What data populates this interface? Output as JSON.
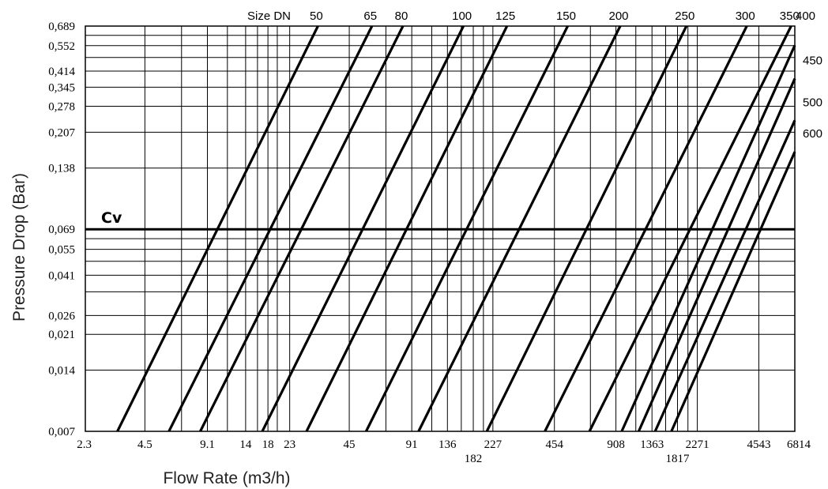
{
  "chart_data": {
    "type": "line",
    "title": "",
    "xlabel": "Flow Rate (m3/h)",
    "ylabel": "Pressure Drop (Bar)",
    "x_scale": "log",
    "y_scale": "log",
    "xlim": [
      2.3,
      6814
    ],
    "ylim": [
      0.007,
      0.689
    ],
    "grid": true,
    "x_ticks": [
      "2.3",
      "4.5",
      "9.1",
      "14",
      "18",
      "23",
      "45",
      "91",
      "136",
      "182",
      "227",
      "454",
      "908",
      "1363",
      "1817",
      "2271",
      "4543",
      "6814"
    ],
    "x_gridlines": [
      4.5,
      6.8,
      9.1,
      11.4,
      14,
      16,
      18,
      20,
      23,
      45,
      68,
      91,
      114,
      136,
      159,
      182,
      204,
      227,
      454,
      681,
      908,
      1136,
      1363,
      1590,
      1817,
      2044,
      2271,
      4543,
      6814
    ],
    "y_ticks": [
      "0,689",
      "0,552",
      "0,414",
      "0,345",
      "0,278",
      "0,207",
      "0,138",
      "0,069",
      "0,055",
      "0,041",
      "0,026",
      "0,021",
      "0,014",
      "0,007"
    ],
    "y_gridlines": [
      0.689,
      0.62,
      0.552,
      0.483,
      0.414,
      0.345,
      0.278,
      0.207,
      0.138,
      0.069,
      0.062,
      0.055,
      0.048,
      0.041,
      0.034,
      0.026,
      0.021,
      0.014,
      0.007
    ],
    "size_label": "Size DN",
    "cv_label": "Cv",
    "cv_pressure": 0.069,
    "series": [
      {
        "name": "50",
        "x": [
          3.3,
          31.6
        ],
        "y": [
          0.007,
          0.689
        ]
      },
      {
        "name": "65",
        "x": [
          5.9,
          58.1
        ],
        "y": [
          0.007,
          0.689
        ]
      },
      {
        "name": "80",
        "x": [
          8.4,
          82.4
        ],
        "y": [
          0.007,
          0.689
        ]
      },
      {
        "name": "100",
        "x": [
          16.9,
          163
        ],
        "y": [
          0.007,
          0.689
        ]
      },
      {
        "name": "125",
        "x": [
          27.8,
          266
        ],
        "y": [
          0.007,
          0.689
        ]
      },
      {
        "name": "150",
        "x": [
          54.4,
          527
        ],
        "y": [
          0.007,
          0.689
        ]
      },
      {
        "name": "200",
        "x": [
          98.3,
          953
        ],
        "y": [
          0.007,
          0.689
        ]
      },
      {
        "name": "250",
        "x": [
          212,
          2009
        ],
        "y": [
          0.007,
          0.689
        ]
      },
      {
        "name": "300",
        "x": [
          408,
          3967
        ],
        "y": [
          0.007,
          0.689
        ]
      },
      {
        "name": "350",
        "x": [
          674,
          6534
        ],
        "y": [
          0.007,
          0.689
        ]
      },
      {
        "name": "400",
        "x": [
          969,
          6814
        ],
        "y": [
          0.007,
          0.554
        ]
      },
      {
        "name": "450",
        "x": [
          1173,
          6814
        ],
        "y": [
          0.007,
          0.38
        ]
      },
      {
        "name": "500",
        "x": [
          1412,
          6814
        ],
        "y": [
          0.007,
          0.237
        ]
      },
      {
        "name": "600",
        "x": [
          1697,
          6814
        ],
        "y": [
          0.007,
          0.166
        ]
      }
    ]
  }
}
